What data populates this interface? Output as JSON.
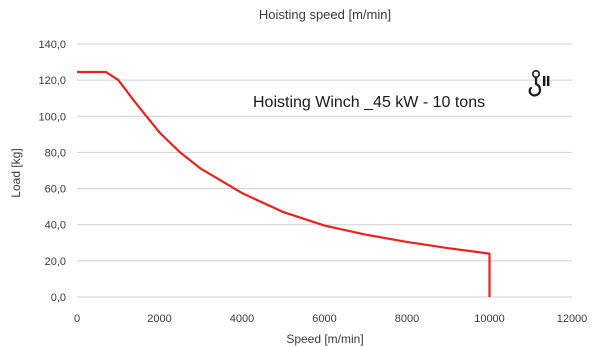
{
  "chart_data": {
    "type": "line",
    "title": "Hoisting speed [m/min]",
    "xlabel": "Speed [m/min]",
    "ylabel": "Load [kg]",
    "xlim": [
      0,
      12000
    ],
    "ylim": [
      0,
      140
    ],
    "x_ticks": [
      0,
      2000,
      4000,
      6000,
      8000,
      10000,
      12000
    ],
    "x_tick_labels": [
      "0",
      "2000",
      "4000",
      "6000",
      "8000",
      "10000",
      "12000"
    ],
    "y_ticks": [
      0,
      20,
      40,
      60,
      80,
      100,
      120,
      140
    ],
    "y_tick_labels": [
      "0,0",
      "20,0",
      "40,0",
      "60,0",
      "80,0",
      "100,0",
      "120,0",
      "140,0"
    ],
    "grid": "horizontal",
    "annotation": "Hoisting Winch _45 kW - 10 tons",
    "annotation_icon": "hook-icon",
    "series": [
      {
        "color": "#e8231f",
        "x": [
          0,
          700,
          1000,
          1400,
          2000,
          2500,
          3000,
          4000,
          5000,
          6000,
          7000,
          8000,
          9000,
          10000,
          10000
        ],
        "y": [
          124.5,
          124.5,
          120,
          108,
          91,
          80,
          71,
          57.5,
          47,
          39.5,
          34.5,
          30.5,
          27,
          24,
          0
        ]
      }
    ]
  }
}
